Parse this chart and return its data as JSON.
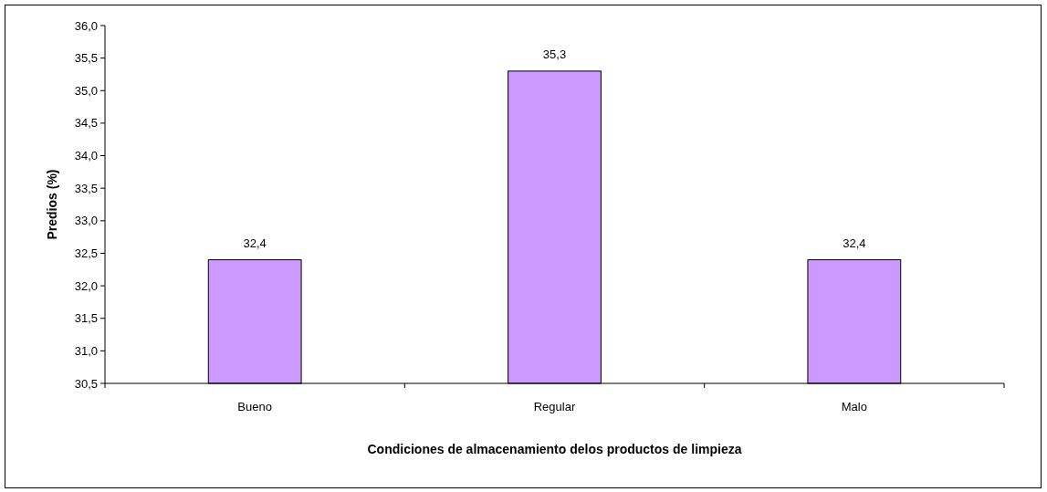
{
  "chart_data": {
    "type": "bar",
    "xlabel": "Condiciones de almacenamiento delos productos de limpieza",
    "ylabel": "Predios (%)",
    "categories": [
      "Bueno",
      "Regular",
      "Malo"
    ],
    "values": [
      32.4,
      35.3,
      32.4
    ],
    "value_labels": [
      "32,4",
      "35,3",
      "32,4"
    ],
    "color": "#cc99ff",
    "ylim": [
      30.5,
      36.0
    ],
    "yticks": [
      {
        "value": 30.5,
        "label": "30,5"
      },
      {
        "value": 31.0,
        "label": "31,0"
      },
      {
        "value": 31.5,
        "label": "31,5"
      },
      {
        "value": 32.0,
        "label": "32,0"
      },
      {
        "value": 32.5,
        "label": "32,5"
      },
      {
        "value": 33.0,
        "label": "33,0"
      },
      {
        "value": 33.5,
        "label": "33,5"
      },
      {
        "value": 34.0,
        "label": "34,0"
      },
      {
        "value": 34.5,
        "label": "34,5"
      },
      {
        "value": 35.0,
        "label": "35,0"
      },
      {
        "value": 35.5,
        "label": "35,5"
      },
      {
        "value": 36.0,
        "label": "36,0"
      }
    ],
    "grid": false
  }
}
